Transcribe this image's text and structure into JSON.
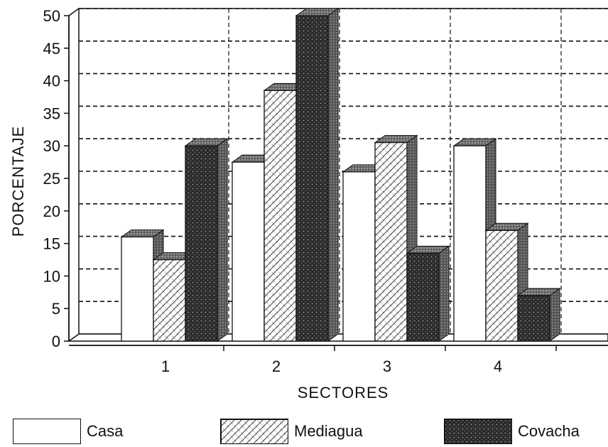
{
  "chart_data": {
    "type": "bar",
    "title": "",
    "xlabel": "SECTORES",
    "ylabel": "PORCENTAJE",
    "categories": [
      "1",
      "2",
      "3",
      "4"
    ],
    "ylim": [
      0,
      50
    ],
    "yticks": [
      0,
      5,
      10,
      15,
      20,
      25,
      30,
      35,
      40,
      45,
      50
    ],
    "grid": true,
    "legend_position": "bottom",
    "series": [
      {
        "name": "Casa",
        "values": [
          16,
          27.5,
          26,
          30
        ],
        "color": "#ffffff",
        "pattern": "plain"
      },
      {
        "name": "Mediagua",
        "values": [
          12.5,
          38.5,
          30.5,
          17
        ],
        "color": "#ffffff",
        "pattern": "crosshatch"
      },
      {
        "name": "Covacha",
        "values": [
          30,
          50,
          13.5,
          7
        ],
        "color": "#333333",
        "pattern": "dark-stipple"
      }
    ]
  }
}
